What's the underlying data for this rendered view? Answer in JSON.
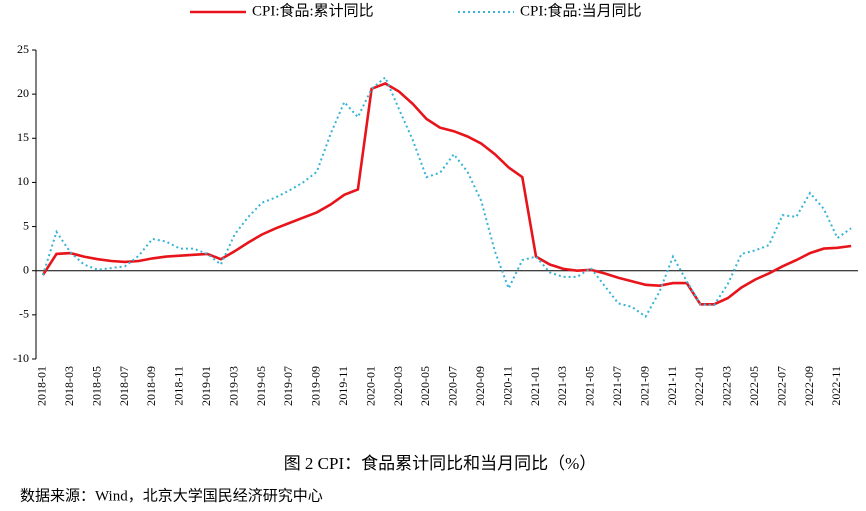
{
  "chart_data": {
    "type": "line",
    "caption": "图 2 CPI：食品累计同比和当月同比（%）",
    "source": "数据来源：Wind，北京大学国民经济研究中心",
    "categories": [
      "2018-01",
      null,
      "2018-03",
      null,
      "2018-05",
      null,
      "2018-07",
      null,
      "2018-09",
      null,
      "2018-11",
      null,
      "2019-01",
      null,
      "2019-03",
      null,
      "2019-05",
      null,
      "2019-07",
      null,
      "2019-09",
      null,
      "2019-11",
      null,
      "2020-01",
      null,
      "2020-03",
      null,
      "2020-05",
      null,
      "2020-07",
      null,
      "2020-09",
      null,
      "2020-11",
      null,
      "2021-01",
      null,
      "2021-03",
      null,
      "2021-05",
      null,
      "2021-07",
      null,
      "2021-09",
      null,
      "2021-11",
      null,
      "2022-01",
      null,
      "2022-03",
      null,
      "2022-05",
      null,
      "2022-07",
      null,
      "2022-09",
      null,
      "2022-11",
      null
    ],
    "series": [
      {
        "name": "CPI:食品:累计同比",
        "color": "#e8141b",
        "dash": "solid",
        "values": [
          -0.5,
          1.9,
          2.0,
          1.6,
          1.3,
          1.1,
          1.0,
          1.1,
          1.4,
          1.6,
          1.7,
          1.8,
          1.9,
          1.3,
          2.2,
          3.2,
          4.1,
          4.8,
          5.4,
          6.0,
          6.6,
          7.5,
          8.6,
          9.2,
          20.6,
          21.2,
          20.3,
          18.9,
          17.2,
          16.2,
          15.8,
          15.2,
          14.4,
          13.2,
          11.7,
          10.6,
          1.6,
          0.7,
          0.2,
          0.0,
          0.1,
          -0.3,
          -0.8,
          -1.2,
          -1.6,
          -1.7,
          -1.4,
          -1.4,
          -3.8,
          -3.8,
          -3.1,
          -1.9,
          -1.0,
          -0.3,
          0.5,
          1.2,
          2.0,
          2.5,
          2.6,
          2.8
        ]
      },
      {
        "name": "CPI:食品:当月同比",
        "color": "#36b3d6",
        "dash": "dotted",
        "values": [
          -0.5,
          4.4,
          2.1,
          0.7,
          0.1,
          0.3,
          0.5,
          1.7,
          3.6,
          3.3,
          2.5,
          2.5,
          1.9,
          0.7,
          4.1,
          6.1,
          7.7,
          8.3,
          9.1,
          10.0,
          11.2,
          15.5,
          19.1,
          17.4,
          20.6,
          21.9,
          18.3,
          14.8,
          10.6,
          11.1,
          13.2,
          11.2,
          7.9,
          2.2,
          -2.0,
          1.2,
          1.6,
          -0.2,
          -0.7,
          -0.7,
          0.3,
          -1.7,
          -3.7,
          -4.1,
          -5.2,
          -2.4,
          1.6,
          -1.2,
          -3.8,
          -3.9,
          -1.5,
          1.9,
          2.3,
          2.9,
          6.3,
          6.1,
          8.8,
          7.0,
          3.7,
          4.8
        ]
      }
    ],
    "ylim": [
      -10,
      25
    ],
    "yticks": [
      -10,
      -5,
      0,
      5,
      10,
      15,
      20,
      25
    ]
  }
}
